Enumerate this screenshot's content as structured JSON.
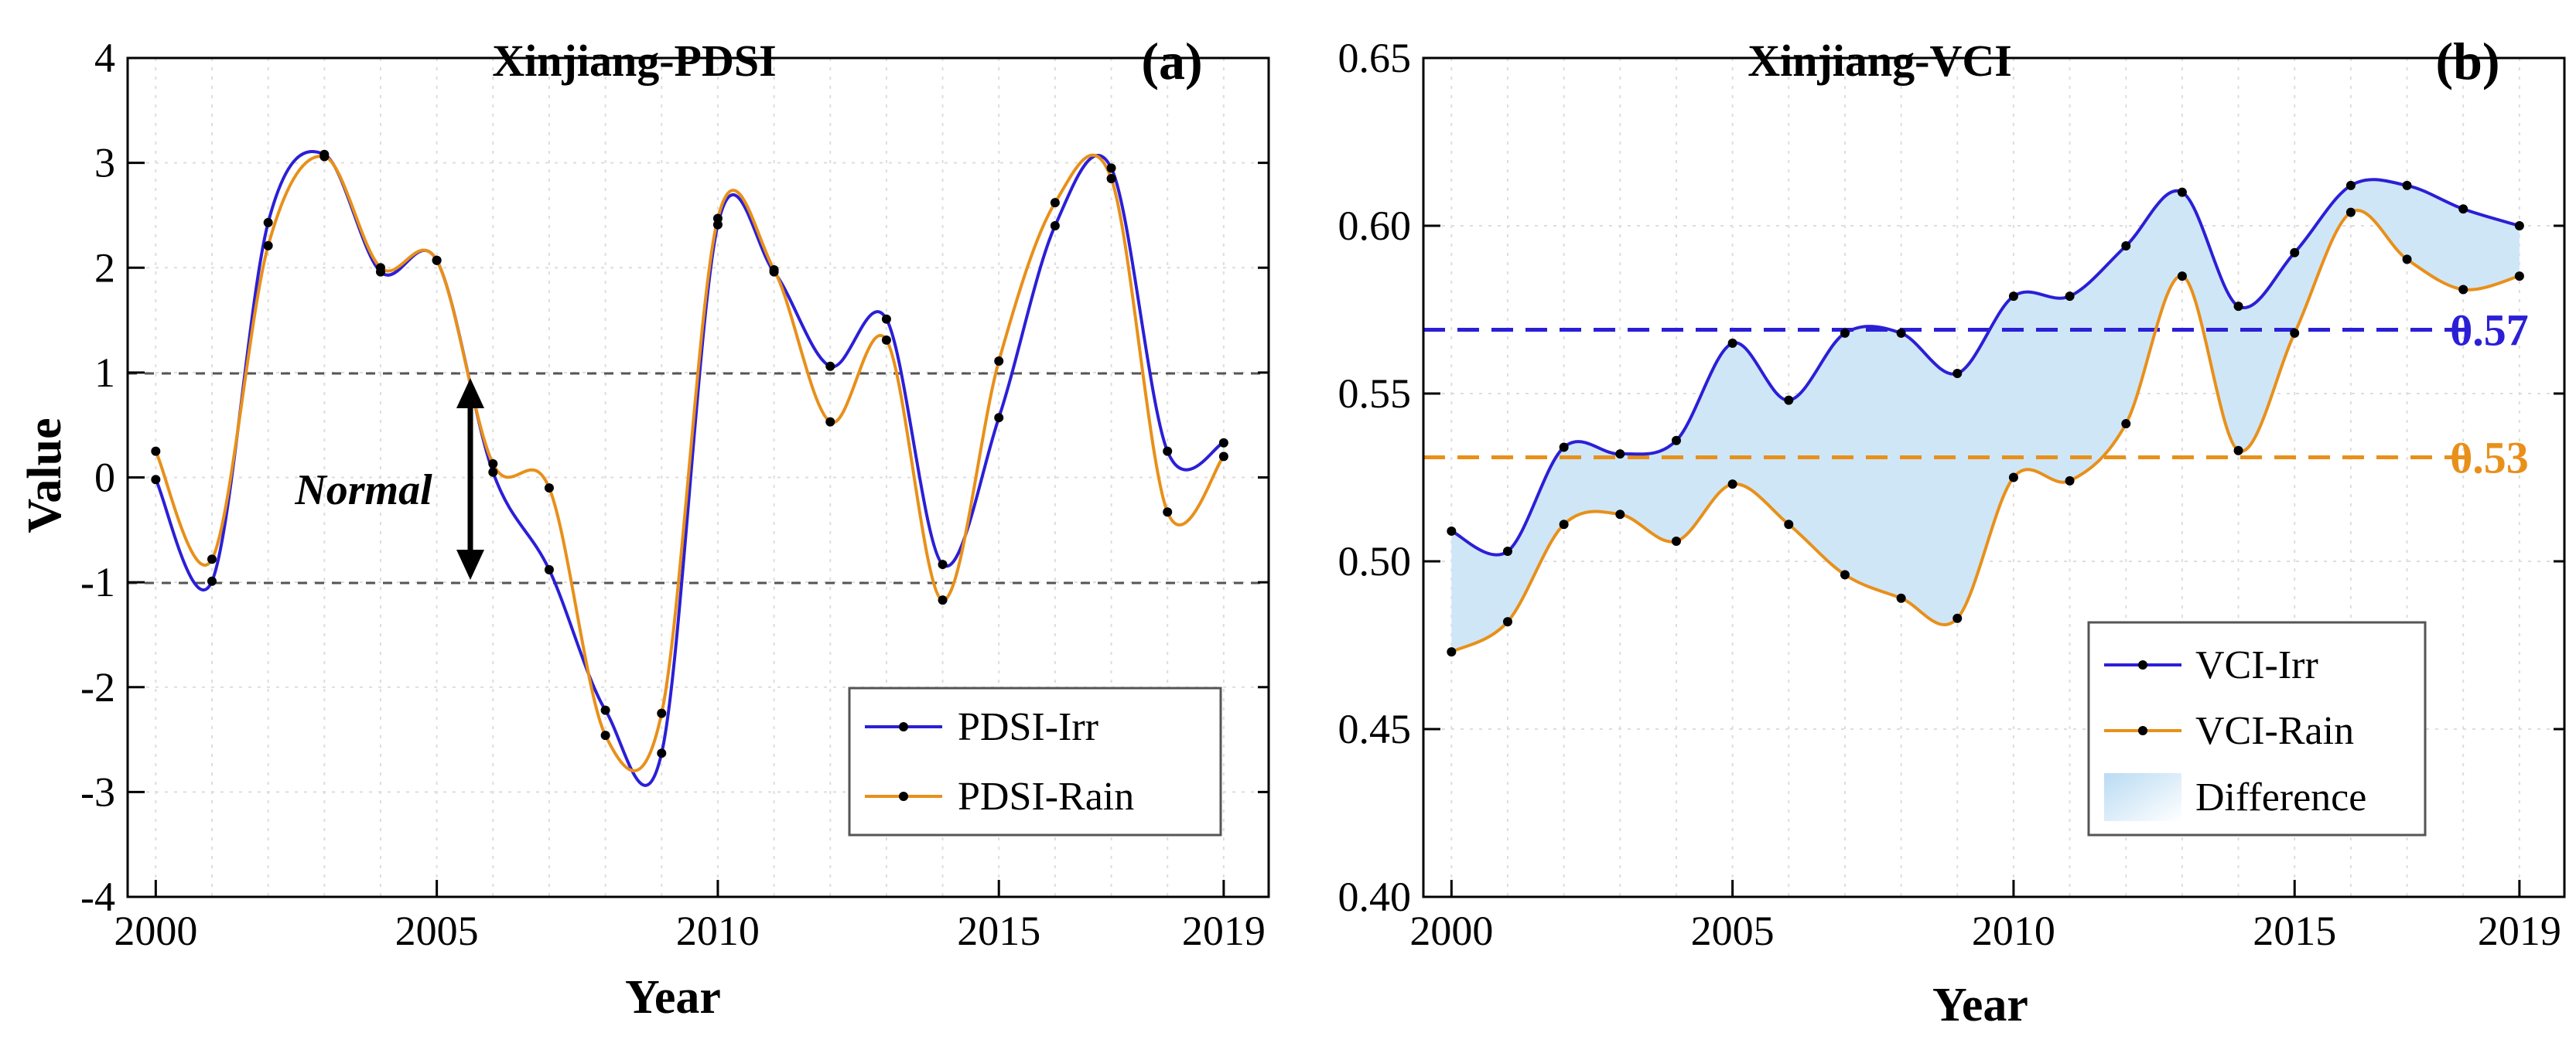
{
  "chart_data": [
    {
      "panel": "a",
      "type": "line",
      "title": "Xinjiang-PDSI",
      "panel_label": "(a)",
      "xlabel": "Year",
      "ylabel": "Value",
      "xlim": [
        1999.5,
        2019.8
      ],
      "ylim": [
        -4,
        4
      ],
      "xticks": [
        2000,
        2005,
        2010,
        2015,
        2019
      ],
      "yticks": [
        -4,
        -3,
        -2,
        -1,
        0,
        1,
        2,
        3,
        4
      ],
      "x": [
        2000,
        2001,
        2002,
        2003,
        2004,
        2005,
        2006,
        2007,
        2008,
        2009,
        2010,
        2011,
        2012,
        2013,
        2014,
        2015,
        2016,
        2017,
        2018,
        2019
      ],
      "series": [
        {
          "name": "PDSI-Irr",
          "color": "#2b1fd6",
          "values": [
            -0.02,
            -0.99,
            2.43,
            3.08,
            1.96,
            2.07,
            0.05,
            -0.88,
            -2.22,
            -2.63,
            2.41,
            1.96,
            1.06,
            1.51,
            -0.83,
            0.57,
            2.4,
            2.95,
            0.25,
            0.33
          ]
        },
        {
          "name": "PDSI-Rain",
          "color": "#e8901a",
          "values": [
            0.25,
            -0.78,
            2.21,
            3.06,
            2.0,
            2.07,
            0.13,
            -0.1,
            -2.46,
            -2.25,
            2.47,
            1.98,
            0.53,
            1.31,
            -1.17,
            1.11,
            2.62,
            2.85,
            -0.33,
            0.2
          ]
        }
      ],
      "reference_lines": [
        1,
        -1
      ],
      "annotation": "Normal",
      "legend": [
        "PDSI-Irr",
        "PDSI-Rain"
      ],
      "legend_position": "bottom-right",
      "grid": true
    },
    {
      "panel": "b",
      "type": "line",
      "title": "Xinjiang-VCI",
      "panel_label": "(b)",
      "xlabel": "Year",
      "ylabel": "",
      "xlim": [
        1999.5,
        2019.8
      ],
      "ylim": [
        0.4,
        0.65
      ],
      "xticks": [
        2000,
        2005,
        2010,
        2015,
        2019
      ],
      "yticks": [
        "0.40",
        "0.45",
        "0.50",
        "0.55",
        "0.60",
        "0.65"
      ],
      "x": [
        2000,
        2001,
        2002,
        2003,
        2004,
        2005,
        2006,
        2007,
        2008,
        2009,
        2010,
        2011,
        2012,
        2013,
        2014,
        2015,
        2016,
        2017,
        2018,
        2019
      ],
      "series": [
        {
          "name": "VCI-Irr",
          "color": "#2b1fd6",
          "values": [
            0.509,
            0.503,
            0.534,
            0.532,
            0.536,
            0.565,
            0.548,
            0.568,
            0.568,
            0.556,
            0.579,
            0.579,
            0.594,
            0.61,
            0.576,
            0.592,
            0.612,
            0.612,
            0.605,
            0.6
          ]
        },
        {
          "name": "VCI-Rain",
          "color": "#e8901a",
          "values": [
            0.473,
            0.482,
            0.511,
            0.514,
            0.506,
            0.523,
            0.511,
            0.496,
            0.489,
            0.483,
            0.525,
            0.524,
            0.541,
            0.585,
            0.533,
            0.568,
            0.604,
            0.59,
            0.581,
            0.585
          ]
        }
      ],
      "mean_lines": [
        {
          "value": 0.569,
          "label": "0.57",
          "color": "#2b1fd6"
        },
        {
          "value": 0.531,
          "label": "0.53",
          "color": "#e8901a"
        }
      ],
      "fill": {
        "name": "Difference",
        "color": "#cfe6f7"
      },
      "legend": [
        "VCI-Irr",
        "VCI-Rain",
        "Difference"
      ],
      "legend_position": "bottom-right",
      "grid": true
    }
  ]
}
